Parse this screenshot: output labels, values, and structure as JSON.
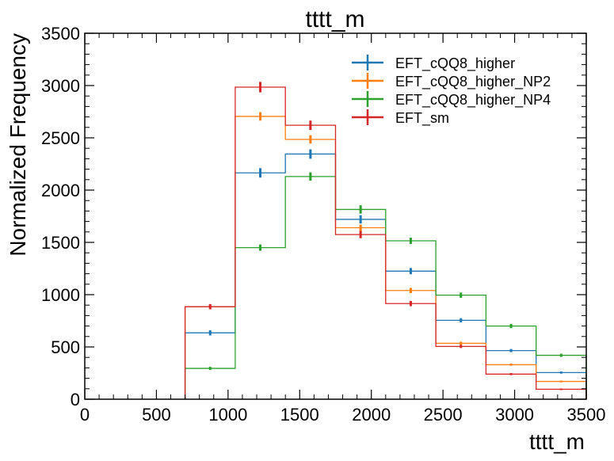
{
  "chart_data": {
    "type": "histogram",
    "title": "tttt_m",
    "xlabel": "tttt_m",
    "ylabel": "Normalized Frequency",
    "xlim": [
      0,
      3500
    ],
    "ylim": [
      0,
      3500
    ],
    "x_ticks": [
      "0",
      "500",
      "1000",
      "1500",
      "2000",
      "2500",
      "3000",
      "3500"
    ],
    "y_ticks": [
      "0",
      "500",
      "1000",
      "1500",
      "2000",
      "2500",
      "3000",
      "3500"
    ],
    "bin_edges": [
      700,
      1050,
      1400,
      1750,
      2100,
      2450,
      2800,
      3150,
      3500
    ],
    "legend_position": "top-right",
    "grid": false,
    "series": [
      {
        "name": "EFT_cQQ8_higher",
        "color": "#1f77b4",
        "values": [
          635,
          2165,
          2345,
          1720,
          1225,
          755,
          465,
          255
        ],
        "errors": [
          25,
          45,
          45,
          40,
          30,
          20,
          15,
          10
        ]
      },
      {
        "name": "EFT_cQQ8_higher_NP2",
        "color": "#ff7f0e",
        "values": [
          885,
          2705,
          2485,
          1640,
          1040,
          535,
          330,
          170
        ],
        "errors": [
          20,
          40,
          40,
          30,
          25,
          15,
          10,
          8
        ]
      },
      {
        "name": "EFT_cQQ8_higher_NP4",
        "color": "#2ca02c",
        "values": [
          295,
          1450,
          2130,
          1815,
          1515,
          995,
          700,
          420
        ],
        "errors": [
          15,
          30,
          40,
          40,
          30,
          25,
          20,
          15
        ]
      },
      {
        "name": "EFT_sm",
        "color": "#d62728",
        "values": [
          885,
          2985,
          2620,
          1575,
          915,
          505,
          240,
          95
        ],
        "errors": [
          25,
          50,
          45,
          35,
          25,
          15,
          10,
          5
        ]
      }
    ]
  }
}
